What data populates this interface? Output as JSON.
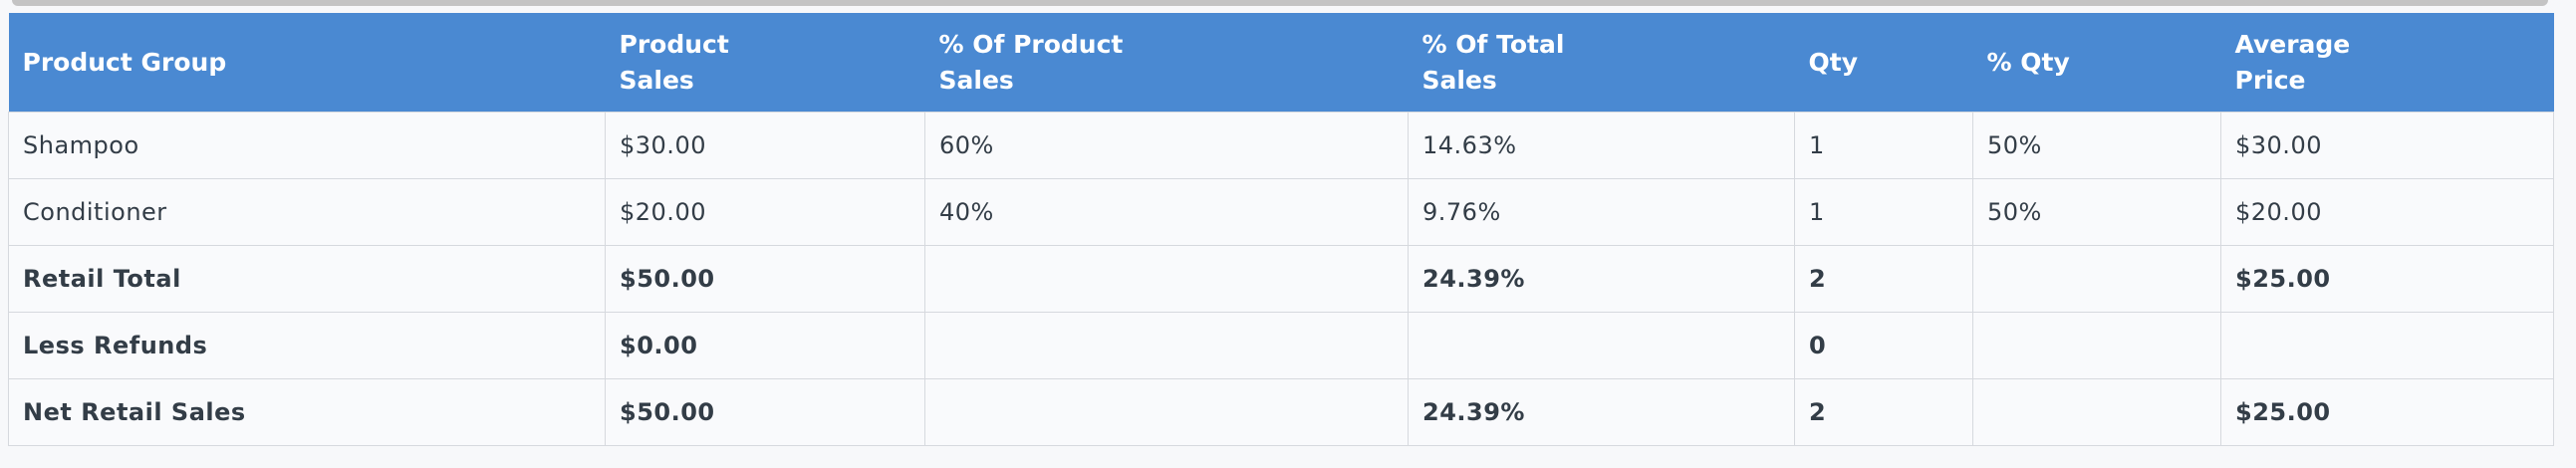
{
  "table": {
    "header": [
      "Product Group",
      "Product Sales",
      "% Of Product Sales",
      "% Of Total Sales",
      "Qty",
      "% Qty",
      "Average Price"
    ],
    "rows": [
      [
        "Shampoo",
        "$30.00",
        "60%",
        "14.63%",
        "1",
        "50%",
        "$30.00"
      ],
      [
        "Conditioner",
        "$20.00",
        "40%",
        "9.76%",
        "1",
        "50%",
        "$20.00"
      ],
      [
        "Retail Total",
        "$50.00",
        null,
        "24.39%",
        "2",
        null,
        "$25.00"
      ],
      [
        "Less Refunds",
        "$0.00",
        null,
        null,
        "0",
        null,
        null
      ],
      [
        "Net Retail Sales",
        "$50.00",
        null,
        "24.39%",
        "2",
        null,
        "$25.00"
      ]
    ]
  }
}
